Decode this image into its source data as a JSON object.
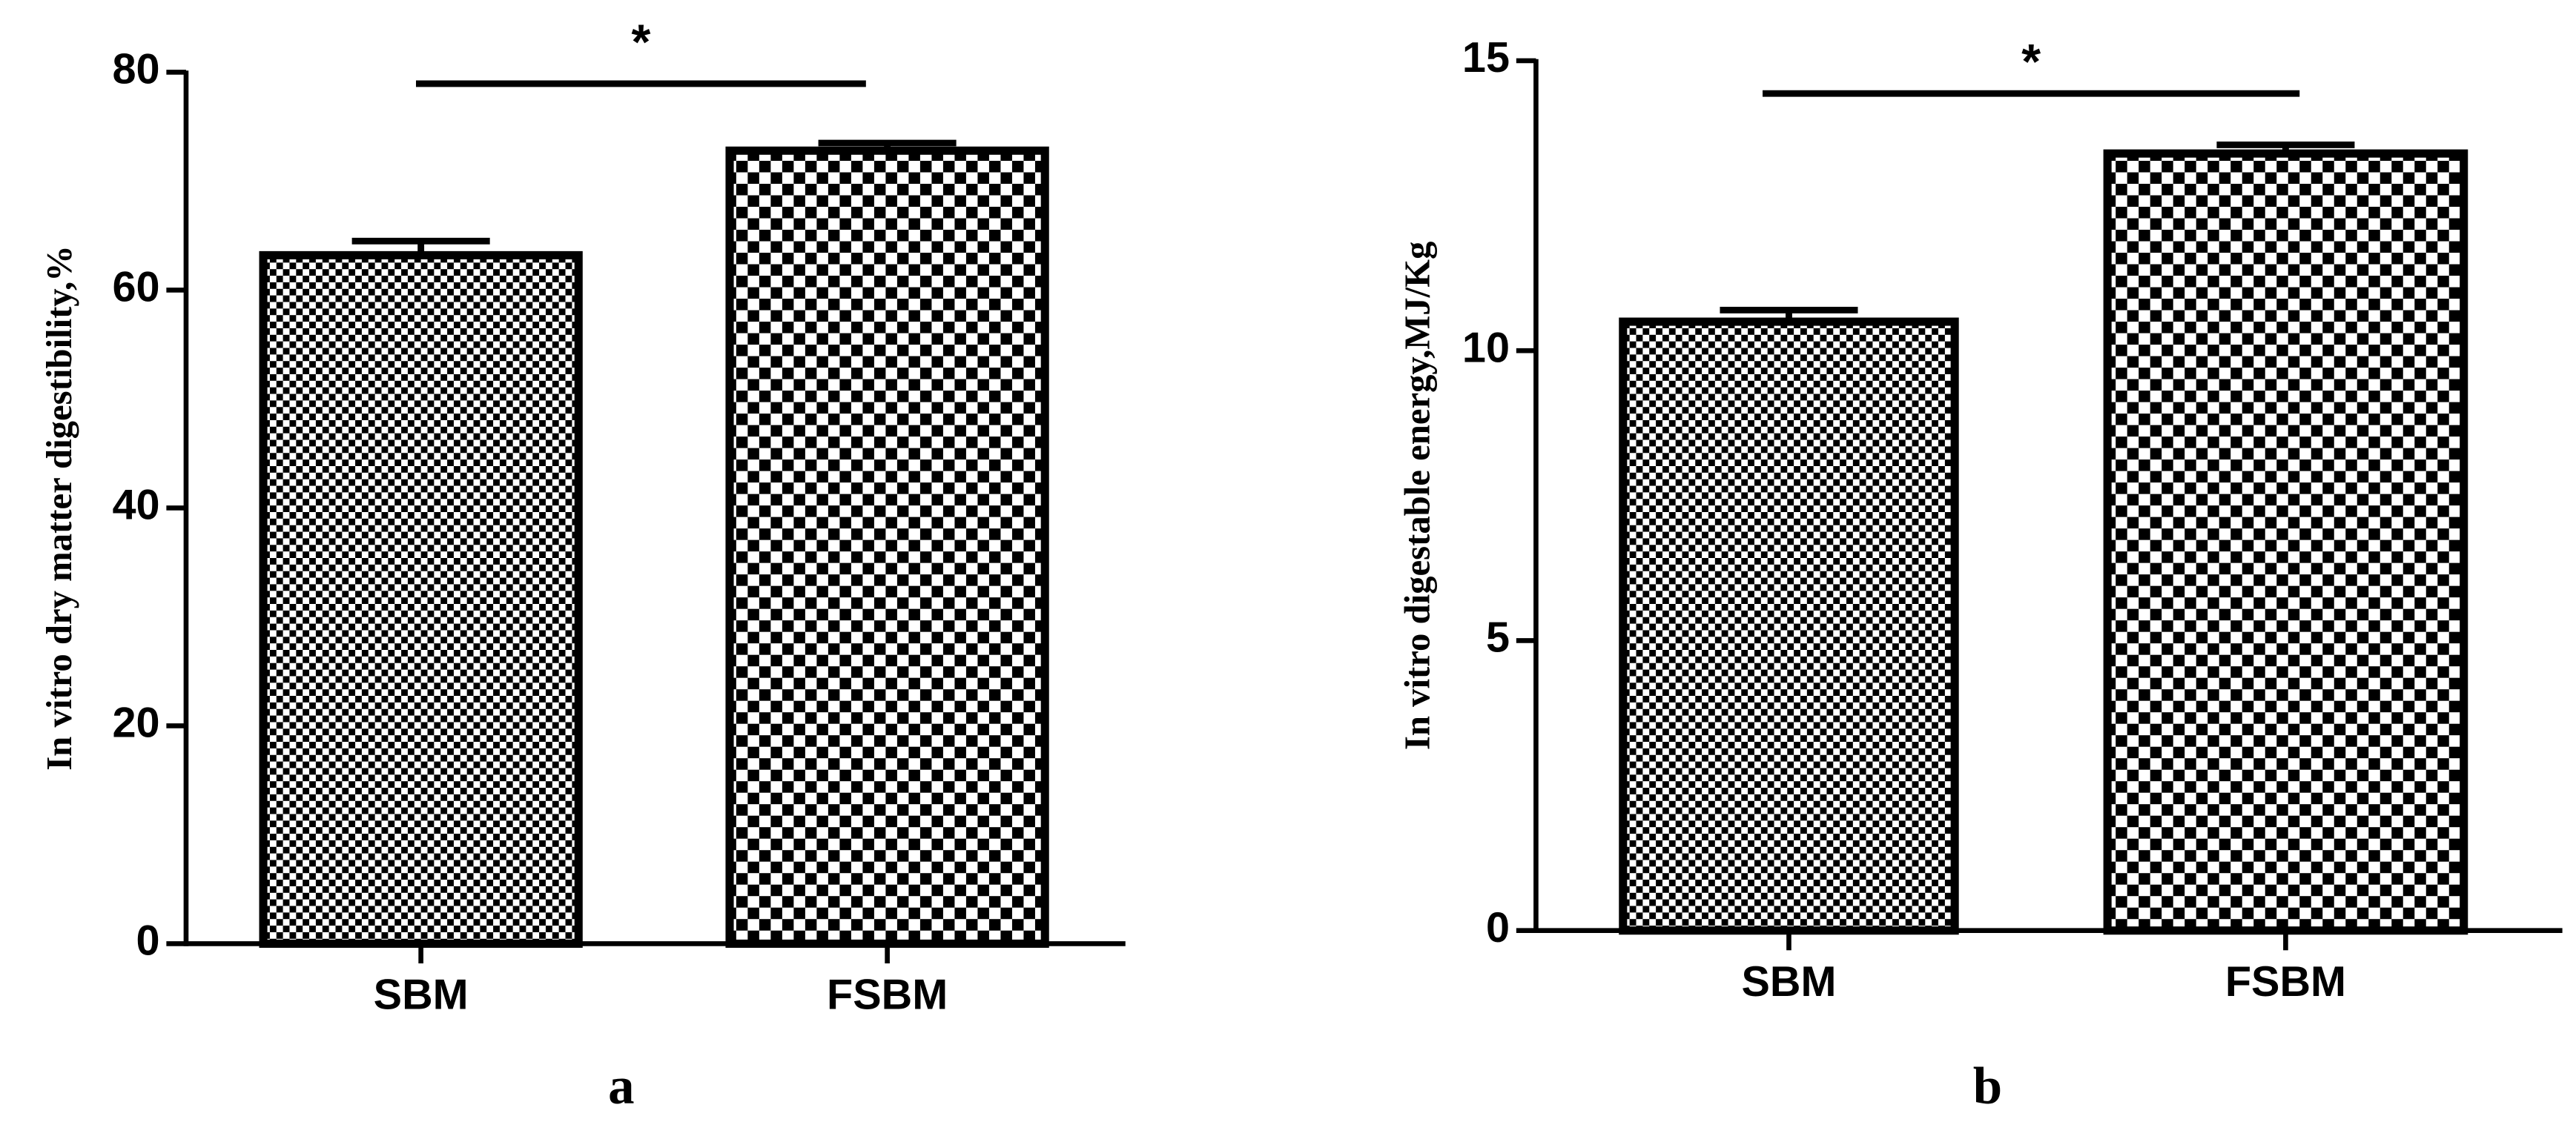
{
  "chart_data": [
    {
      "type": "bar",
      "y_label": "In vitro dry matter digestibility,%",
      "panel_label": "a",
      "significance": "*",
      "categories": [
        "SBM",
        "FSBM"
      ],
      "values": [
        63.2,
        72.8
      ],
      "errors": [
        1.3,
        0.7
      ],
      "ylim": [
        0,
        80
      ],
      "yticks": [
        0,
        20,
        40,
        60,
        80
      ]
    },
    {
      "type": "bar",
      "y_label": "In vitro digestable energy,MJ/Kg",
      "panel_label": "b",
      "significance": "*",
      "categories": [
        "SBM",
        "FSBM"
      ],
      "values": [
        10.5,
        13.4
      ],
      "errors": [
        0.2,
        0.15
      ],
      "ylim": [
        0,
        15
      ],
      "yticks": [
        0,
        5,
        10,
        15
      ]
    }
  ]
}
